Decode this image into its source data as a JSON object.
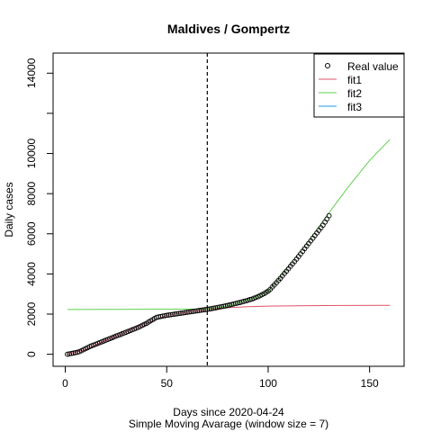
{
  "chart_data": {
    "type": "scatter",
    "title": "Maldives / Gompertz",
    "xlabel": "Days since 2020-04-24",
    "sublabel": "Simple Moving Avarage (window size = 7)",
    "ylabel": "Daily cases",
    "xlim": [
      -6,
      167
    ],
    "ylim": [
      -600,
      15000
    ],
    "x_ticks": [
      0,
      50,
      100,
      150
    ],
    "y_ticks": [
      0,
      2000,
      4000,
      6000,
      8000,
      10000,
      14000
    ],
    "y_tick_marks": [
      0,
      2000,
      4000,
      6000,
      8000,
      10000,
      12000,
      14000
    ],
    "vline_x": 70,
    "legend": {
      "position": "top-right",
      "entries": [
        "Real value",
        "fit1",
        "fit2",
        "fit3"
      ]
    },
    "colors": {
      "points": "#000000",
      "fit1": "#DF536B",
      "fit2": "#61D04F",
      "fit3": "#2297E6",
      "vline": "#000000"
    },
    "series": [
      {
        "name": "Real value",
        "style": "points",
        "x": [
          1,
          2,
          3,
          4,
          5,
          6,
          7,
          8,
          9,
          10,
          11,
          12,
          13,
          14,
          15,
          16,
          17,
          18,
          19,
          20,
          21,
          22,
          23,
          24,
          25,
          26,
          27,
          28,
          29,
          30,
          31,
          32,
          33,
          34,
          35,
          36,
          37,
          38,
          39,
          40,
          41,
          42,
          43,
          44,
          45,
          46,
          47,
          48,
          49,
          50,
          51,
          52,
          53,
          54,
          55,
          56,
          57,
          58,
          59,
          60,
          61,
          62,
          63,
          64,
          65,
          66,
          67,
          68,
          69,
          70,
          71,
          72,
          73,
          74,
          75,
          76,
          77,
          78,
          79,
          80,
          81,
          82,
          83,
          84,
          85,
          86,
          87,
          88,
          89,
          90,
          91,
          92,
          93,
          94,
          95,
          96,
          97,
          98,
          99,
          100,
          101,
          102,
          103,
          104,
          105,
          106,
          107,
          108,
          109,
          110,
          111,
          112,
          113,
          114,
          115,
          116,
          117,
          118,
          119,
          120,
          121,
          122,
          123,
          124,
          125,
          126,
          127,
          128,
          129,
          130
        ],
        "y": [
          0,
          20,
          40,
          60,
          80,
          100,
          130,
          180,
          230,
          280,
          330,
          380,
          420,
          460,
          500,
          540,
          580,
          620,
          660,
          700,
          740,
          780,
          820,
          860,
          900,
          940,
          980,
          1020,
          1060,
          1100,
          1140,
          1180,
          1220,
          1260,
          1300,
          1340,
          1390,
          1440,
          1490,
          1540,
          1600,
          1660,
          1720,
          1780,
          1840,
          1860,
          1880,
          1900,
          1920,
          1940,
          1955,
          1970,
          1985,
          2000,
          2015,
          2030,
          2045,
          2060,
          2075,
          2090,
          2105,
          2120,
          2135,
          2150,
          2165,
          2180,
          2195,
          2210,
          2225,
          2240,
          2255,
          2270,
          2290,
          2310,
          2330,
          2350,
          2370,
          2390,
          2410,
          2430,
          2455,
          2480,
          2505,
          2530,
          2555,
          2580,
          2605,
          2630,
          2660,
          2690,
          2720,
          2750,
          2790,
          2830,
          2870,
          2920,
          2970,
          3020,
          3080,
          3150,
          3230,
          3350,
          3450,
          3560,
          3670,
          3780,
          3900,
          4020,
          4140,
          4260,
          4380,
          4500,
          4620,
          4740,
          4870,
          5000,
          5130,
          5260,
          5390,
          5520,
          5650,
          5780,
          5910,
          6040,
          6170,
          6300,
          6430,
          6580,
          6740,
          6900
        ]
      },
      {
        "name": "fit1",
        "style": "line",
        "x": [
          1,
          10,
          20,
          30,
          40,
          50,
          60,
          70,
          80,
          90,
          100,
          120,
          140,
          160
        ],
        "y": [
          0,
          230,
          700,
          1100,
          1540,
          1940,
          2090,
          2240,
          2320,
          2370,
          2400,
          2420,
          2430,
          2435
        ]
      },
      {
        "name": "fit2",
        "style": "line",
        "x": [
          1,
          20,
          40,
          60,
          70,
          80,
          90,
          95,
          100,
          105,
          110,
          120,
          130,
          140,
          150,
          160
        ],
        "y": [
          2230,
          2235,
          2240,
          2245,
          2250,
          2410,
          2690,
          2870,
          3150,
          3750,
          4380,
          5650,
          7050,
          8400,
          9650,
          10700
        ]
      },
      {
        "name": "fit3",
        "style": "line",
        "x": [],
        "y": []
      }
    ]
  }
}
